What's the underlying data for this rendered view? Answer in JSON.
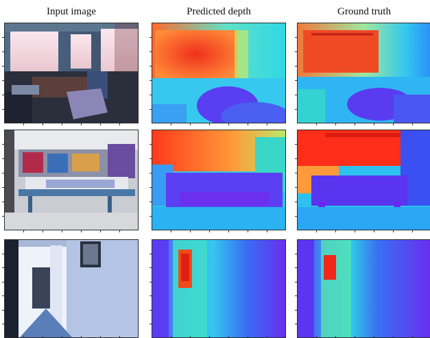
{
  "figure": {
    "columns": [
      {
        "key": "input",
        "label": "Input image"
      },
      {
        "key": "pred",
        "label": "Predicted depth"
      },
      {
        "key": "gt",
        "label": "Ground truth"
      }
    ],
    "rows": [
      {
        "scene": "office room with windows"
      },
      {
        "scene": "bookstore with display table"
      },
      {
        "scene": "hallway with open door"
      }
    ],
    "colormap": {
      "near": "#ff2a1a",
      "mid_warm": "#f6a040",
      "mid": "#35e0d8",
      "mid_cool": "#2aa8f5",
      "far": "#6a2cf0"
    }
  }
}
